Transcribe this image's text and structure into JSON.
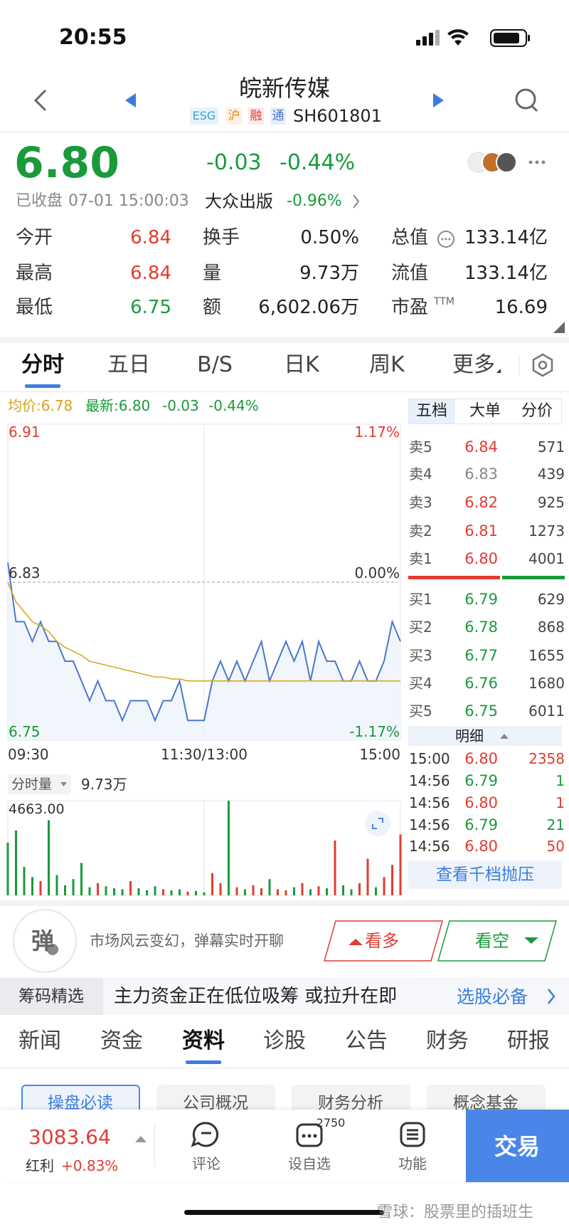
{
  "status": {
    "time": "20:55"
  },
  "header": {
    "title": "皖新传媒",
    "tags": [
      "ESG",
      "沪",
      "融",
      "通"
    ],
    "code": "SH601801"
  },
  "quote": {
    "price": "6.80",
    "change": "-0.03",
    "change_pct": "-0.44%",
    "status": "已收盘",
    "time": "07-01 15:00:03",
    "sector": "大众出版",
    "sector_pct": "-0.96%"
  },
  "stats": [
    [
      {
        "label": "今开",
        "value": "6.84",
        "color": "#e03c31"
      },
      {
        "label": "换手",
        "value": "0.50%"
      },
      {
        "label": "总值",
        "value": "133.14亿"
      }
    ],
    [
      {
        "label": "最高",
        "value": "6.84",
        "color": "#e03c31"
      },
      {
        "label": "量",
        "value": "9.73万"
      },
      {
        "label": "流值",
        "value": "133.14亿"
      }
    ],
    [
      {
        "label": "最低",
        "value": "6.75",
        "color": "#1a9a3c"
      },
      {
        "label": "额",
        "value": "6,602.06万"
      },
      {
        "label": "市盈",
        "sup": "TTM",
        "value": "16.69"
      }
    ]
  ],
  "tabs": [
    "分时",
    "五日",
    "B/S",
    "日K",
    "周K",
    "更多"
  ],
  "info": {
    "avg": "均价:6.78",
    "latest": "最新:6.80",
    "change": "-0.03",
    "change_pct": "-0.44%"
  },
  "chart_data": [
    {
      "type": "line",
      "x": [
        0,
        5,
        10,
        15,
        20,
        25,
        30,
        35,
        40,
        45,
        50,
        55,
        60,
        65,
        70,
        75,
        80,
        85,
        90,
        95,
        100,
        105,
        110,
        115,
        120,
        125,
        130,
        135,
        140,
        145,
        150,
        155,
        160,
        165,
        170,
        175,
        180,
        185,
        190,
        195,
        200,
        205,
        210,
        215,
        220,
        225,
        230,
        235,
        240
      ],
      "series": [
        {
          "color": "#4a78c8",
          "values": [
            6.84,
            6.81,
            6.81,
            6.8,
            6.81,
            6.8,
            6.8,
            6.79,
            6.79,
            6.78,
            6.77,
            6.78,
            6.77,
            6.77,
            6.76,
            6.77,
            6.77,
            6.77,
            6.76,
            6.77,
            6.77,
            6.78,
            6.76,
            6.76,
            6.76,
            6.78,
            6.79,
            6.78,
            6.79,
            6.78,
            6.79,
            6.8,
            6.78,
            6.79,
            6.8,
            6.79,
            6.8,
            6.78,
            6.8,
            6.79,
            6.79,
            6.78,
            6.78,
            6.79,
            6.78,
            6.78,
            6.79,
            6.81,
            6.8
          ]
        },
        {
          "color": "#d9a21b",
          "values": [
            6.83,
            6.82,
            6.815,
            6.81,
            6.808,
            6.805,
            6.8,
            6.797,
            6.795,
            6.793,
            6.79,
            6.789,
            6.788,
            6.787,
            6.786,
            6.785,
            6.784,
            6.783,
            6.782,
            6.782,
            6.781,
            6.781,
            6.78,
            6.78,
            6.78,
            6.78,
            6.78,
            6.78,
            6.78,
            6.78,
            6.78,
            6.78,
            6.78,
            6.78,
            6.78,
            6.78,
            6.78,
            6.78,
            6.78,
            6.78,
            6.78,
            6.78,
            6.78,
            6.78,
            6.78,
            6.78,
            6.78,
            6.78,
            6.78
          ]
        }
      ],
      "xlim": [
        0,
        240
      ],
      "xticks": [
        {
          "value": 0,
          "label": "09:30"
        },
        {
          "value": 120,
          "label": "11:30/13:00"
        },
        {
          "value": 240,
          "label": "15:00"
        }
      ],
      "ylim": [
        6.75,
        6.91
      ],
      "yticks": [
        6.75,
        6.83,
        6.91
      ],
      "y2lim": [
        -1.17,
        1.17
      ],
      "y2ticks": [
        {
          "value": -1.17,
          "label": "-1.17%"
        },
        {
          "value": 0,
          "label": "0.00%"
        },
        {
          "value": 1.17,
          "label": "1.17%"
        }
      ]
    },
    {
      "type": "bar",
      "x": [
        0,
        5,
        10,
        15,
        20,
        25,
        30,
        35,
        40,
        45,
        50,
        55,
        60,
        65,
        70,
        75,
        80,
        85,
        90,
        95,
        100,
        105,
        110,
        115,
        120,
        125,
        130,
        135,
        140,
        145,
        150,
        155,
        160,
        165,
        170,
        175,
        180,
        185,
        190,
        195,
        200,
        205,
        210,
        215,
        220,
        225,
        230,
        235,
        240
      ],
      "values": [
        2600,
        3200,
        1400,
        900,
        700,
        3700,
        1000,
        500,
        800,
        1600,
        400,
        600,
        450,
        350,
        300,
        700,
        350,
        250,
        450,
        300,
        250,
        300,
        180,
        220,
        150,
        1100,
        600,
        4663,
        400,
        300,
        500,
        350,
        800,
        300,
        250,
        400,
        600,
        300,
        450,
        350,
        2700,
        500,
        300,
        600,
        1800,
        400,
        900,
        1500,
        3000
      ],
      "colors": [
        "#1a9a3c",
        "#1a9a3c",
        "#1a9a3c",
        "#1a9a3c",
        "#e03c31",
        "#1a9a3c",
        "#1a9a3c",
        "#1a9a3c",
        "#1a9a3c",
        "#1a9a3c",
        "#1a9a3c",
        "#e03c31",
        "#1a9a3c",
        "#1a9a3c",
        "#1a9a3c",
        "#e03c31",
        "#1a9a3c",
        "#1a9a3c",
        "#1a9a3c",
        "#e03c31",
        "#1a9a3c",
        "#1a9a3c",
        "#e03c31",
        "#1a9a3c",
        "#1a9a3c",
        "#e03c31",
        "#e03c31",
        "#1a9a3c",
        "#e03c31",
        "#1a9a3c",
        "#e03c31",
        "#e03c31",
        "#1a9a3c",
        "#e03c31",
        "#e03c31",
        "#1a9a3c",
        "#e03c31",
        "#1a9a3c",
        "#e03c31",
        "#1a9a3c",
        "#e03c31",
        "#1a9a3c",
        "#1a9a3c",
        "#e03c31",
        "#e03c31",
        "#1a9a3c",
        "#e03c31",
        "#e03c31",
        "#e03c31"
      ],
      "xlim": [
        0,
        240
      ],
      "ylim": [
        0,
        4663
      ],
      "yticks": [
        {
          "value": 4663,
          "label": "4663.00"
        }
      ]
    }
  ],
  "volume_header": {
    "label": "分时量",
    "total": "9.73万"
  },
  "order_book": {
    "tabs": [
      "五档",
      "大单",
      "分价"
    ],
    "asks": [
      {
        "label": "卖5",
        "price": "6.84",
        "volume": "571",
        "color": "#e03c31"
      },
      {
        "label": "卖4",
        "price": "6.83",
        "volume": "439",
        "color": "#888888"
      },
      {
        "label": "卖3",
        "price": "6.82",
        "volume": "925",
        "color": "#e03c31"
      },
      {
        "label": "卖2",
        "price": "6.81",
        "volume": "1273",
        "color": "#e03c31"
      },
      {
        "label": "卖1",
        "price": "6.80",
        "volume": "4001",
        "color": "#e03c31"
      }
    ],
    "bids": [
      {
        "label": "买1",
        "price": "6.79",
        "volume": "629",
        "color": "#1a9a3c"
      },
      {
        "label": "买2",
        "price": "6.78",
        "volume": "868",
        "color": "#1a9a3c"
      },
      {
        "label": "买3",
        "price": "6.77",
        "volume": "1655",
        "color": "#1a9a3c"
      },
      {
        "label": "买4",
        "price": "6.76",
        "volume": "1680",
        "color": "#1a9a3c"
      },
      {
        "label": "买5",
        "price": "6.75",
        "volume": "6011",
        "color": "#1a9a3c"
      }
    ],
    "detail": "明细",
    "trades": [
      {
        "time": "15:00",
        "price": "6.80",
        "volume": "2358",
        "price_color": "#e03c31",
        "volume_color": "#e03c31"
      },
      {
        "time": "14:56",
        "price": "6.79",
        "volume": "1",
        "price_color": "#1a9a3c",
        "volume_color": "#1a9a3c"
      },
      {
        "time": "14:56",
        "price": "6.80",
        "volume": "1",
        "price_color": "#e03c31",
        "volume_color": "#e03c31"
      },
      {
        "time": "14:56",
        "price": "6.79",
        "volume": "21",
        "price_color": "#1a9a3c",
        "volume_color": "#1a9a3c"
      },
      {
        "time": "14:56",
        "price": "6.80",
        "volume": "50",
        "price_color": "#e03c31",
        "volume_color": "#e03c31"
      }
    ],
    "button": "查看千档抛压"
  },
  "danmaku": {
    "icon": "弹",
    "text": "市场风云变幻，弹幕实时开聊",
    "bull": "看多",
    "bear": "看空"
  },
  "banner": {
    "tag": "筹码精选",
    "text": "主力资金正在低位吸筹 或拉升在即",
    "link": "选股必备"
  },
  "section_tabs": [
    "新闻",
    "资金",
    "资料",
    "诊股",
    "公告",
    "财务",
    "研报"
  ],
  "sub_tabs": [
    "操盘必读",
    "公司概况",
    "财务分析",
    "概念基金"
  ],
  "bottom": {
    "index": "3083.64",
    "index_name": "红利",
    "index_pct": "+0.83%",
    "items": [
      "评论",
      "设自选",
      "功能"
    ],
    "badge": "2750",
    "trade": "交易"
  },
  "watermark": "雪球：股票里的插班生"
}
